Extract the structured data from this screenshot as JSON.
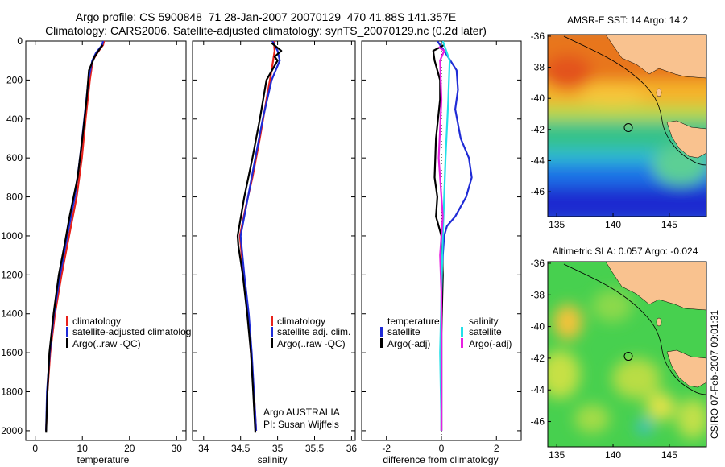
{
  "header": {
    "line1": "Argo profile: CS 5900848_71 28-Jan-2007 20070129_470 41.88S 141.357E",
    "line2": "Climatology: CARS2006. Satellite-adjusted climatology: synTS_20070129.nc (0.2d later)"
  },
  "colors": {
    "climatology": "#e8211b",
    "satellite": "#1f2bd6",
    "argo": "#000000",
    "argo_adj": "#e81ee0",
    "salinity_satellite": "#22e0e8",
    "land": "#f9c28f"
  },
  "chart_data": [
    {
      "type": "line",
      "id": "temperature_panel",
      "xlabel": "temperature",
      "xlim": [
        -2,
        32
      ],
      "ylim": [
        2050,
        0
      ],
      "xticks": [
        0,
        10,
        20,
        30
      ],
      "yticks": [
        0,
        200,
        400,
        600,
        800,
        1000,
        1200,
        1400,
        1600,
        1800,
        2000
      ],
      "legend": [
        "climatology",
        "satellite-adjusted climatolog",
        "Argo(..raw -QC)"
      ],
      "series": [
        {
          "name": "climatology",
          "color": "climatology",
          "points": [
            [
              14.6,
              0
            ],
            [
              14.4,
              20
            ],
            [
              13.2,
              60
            ],
            [
              12.2,
              100
            ],
            [
              11.6,
              200
            ],
            [
              10.7,
              400
            ],
            [
              9.9,
              600
            ],
            [
              8.8,
              800
            ],
            [
              7.2,
              1000
            ],
            [
              5.6,
              1200
            ],
            [
              4.2,
              1400
            ],
            [
              3.2,
              1600
            ],
            [
              2.6,
              1800
            ],
            [
              2.3,
              2000
            ]
          ]
        },
        {
          "name": "satellite-adjusted climatolog",
          "color": "satellite",
          "points": [
            [
              14.4,
              0
            ],
            [
              14.2,
              20
            ],
            [
              12.9,
              60
            ],
            [
              12.1,
              100
            ],
            [
              11.3,
              200
            ],
            [
              10.4,
              400
            ],
            [
              9.5,
              600
            ],
            [
              8.4,
              800
            ],
            [
              6.8,
              1000
            ],
            [
              5.3,
              1200
            ],
            [
              4.0,
              1400
            ],
            [
              3.1,
              1600
            ],
            [
              2.5,
              1800
            ],
            [
              2.3,
              2000
            ]
          ]
        },
        {
          "name": "Argo(..raw -QC)",
          "color": "argo",
          "points": [
            [
              14.3,
              20
            ],
            [
              13.7,
              40
            ],
            [
              12.6,
              80
            ],
            [
              11.4,
              150
            ],
            [
              10.9,
              300
            ],
            [
              10.0,
              500
            ],
            [
              9.0,
              700
            ],
            [
              7.3,
              900
            ],
            [
              6.2,
              1050
            ],
            [
              5.0,
              1200
            ],
            [
              3.9,
              1400
            ],
            [
              3.0,
              1600
            ],
            [
              2.6,
              1800
            ],
            [
              2.3,
              2010
            ]
          ]
        }
      ]
    },
    {
      "type": "line",
      "id": "salinity_panel",
      "xlabel": "salinity",
      "xlim": [
        33.85,
        36.05
      ],
      "ylim": [
        2050,
        0
      ],
      "xticks": [
        34,
        34.5,
        35,
        35.5,
        36
      ],
      "xticklabels": [
        "34",
        "34.5",
        "35",
        "35.5",
        "36"
      ],
      "legend": [
        "climatology",
        "satellite adj. clim.",
        "Argo(..raw -QC)"
      ],
      "annotation": [
        "Argo AUSTRALIA",
        "PI: Susan Wijffels"
      ],
      "series": [
        {
          "name": "climatology",
          "color": "climatology",
          "points": [
            [
              34.95,
              0
            ],
            [
              34.96,
              50
            ],
            [
              34.92,
              150
            ],
            [
              34.85,
              300
            ],
            [
              34.76,
              500
            ],
            [
              34.66,
              700
            ],
            [
              34.57,
              850
            ],
            [
              34.49,
              1000
            ],
            [
              34.54,
              1200
            ],
            [
              34.6,
              1400
            ],
            [
              34.64,
              1600
            ],
            [
              34.68,
              1800
            ],
            [
              34.71,
              2000
            ]
          ]
        },
        {
          "name": "satellite adj. clim.",
          "color": "satellite",
          "points": [
            [
              34.93,
              0
            ],
            [
              35.0,
              50
            ],
            [
              35.03,
              100
            ],
            [
              34.92,
              200
            ],
            [
              34.8,
              400
            ],
            [
              34.7,
              600
            ],
            [
              34.6,
              800
            ],
            [
              34.5,
              1000
            ],
            [
              34.55,
              1200
            ],
            [
              34.61,
              1400
            ],
            [
              34.65,
              1600
            ],
            [
              34.68,
              1800
            ],
            [
              34.71,
              2000
            ]
          ]
        },
        {
          "name": "Argo(..raw -QC)",
          "color": "argo",
          "points": [
            [
              34.92,
              10
            ],
            [
              35.05,
              50
            ],
            [
              34.96,
              80
            ],
            [
              35.0,
              100
            ],
            [
              34.85,
              200
            ],
            [
              34.76,
              400
            ],
            [
              34.66,
              600
            ],
            [
              34.55,
              800
            ],
            [
              34.46,
              1000
            ],
            [
              34.47,
              1050
            ],
            [
              34.53,
              1200
            ],
            [
              34.59,
              1400
            ],
            [
              34.64,
              1600
            ],
            [
              34.67,
              1800
            ],
            [
              34.7,
              2010
            ]
          ]
        }
      ]
    },
    {
      "type": "line",
      "id": "difference_panel",
      "xlabel": "difference from climatology",
      "xlim": [
        -2.9,
        2.9
      ],
      "ylim": [
        2050,
        0
      ],
      "xticks": [
        -2,
        0,
        2
      ],
      "legend_temperature_title": "temperature",
      "legend_salinity_title": "salinity",
      "legend_temperature": [
        "satellite",
        "Argo(-adj)"
      ],
      "legend_salinity": [
        "satellite",
        "Argo(-adj)"
      ],
      "series": [
        {
          "name": "temperature satellite",
          "color": "satellite",
          "points": [
            [
              -0.15,
              0
            ],
            [
              0.1,
              50
            ],
            [
              0.55,
              150
            ],
            [
              0.6,
              250
            ],
            [
              0.5,
              350
            ],
            [
              0.7,
              500
            ],
            [
              1.0,
              600
            ],
            [
              1.1,
              700
            ],
            [
              0.9,
              800
            ],
            [
              0.5,
              900
            ],
            [
              0.2,
              950
            ],
            [
              0.1,
              1000
            ],
            [
              0.05,
              1100
            ],
            [
              0,
              1300
            ],
            [
              0,
              2000
            ]
          ]
        },
        {
          "name": "temperature Argo(-adj)",
          "color": "argo",
          "points": [
            [
              0.1,
              20
            ],
            [
              -0.3,
              50
            ],
            [
              -0.25,
              100
            ],
            [
              -0.05,
              200
            ],
            [
              -0.05,
              300
            ],
            [
              -0.2,
              500
            ],
            [
              -0.25,
              700
            ],
            [
              -0.15,
              800
            ],
            [
              -0.2,
              900
            ],
            [
              0.0,
              1000
            ],
            [
              0.05,
              1200
            ],
            [
              0.0,
              1500
            ],
            [
              0.0,
              2000
            ]
          ]
        },
        {
          "name": "salinity satellite",
          "color": "salinity_satellite",
          "points": [
            [
              0.05,
              0
            ],
            [
              0.3,
              100
            ],
            [
              0.25,
              300
            ],
            [
              0.15,
              600
            ],
            [
              0.05,
              1000
            ],
            [
              0.0,
              1300
            ],
            [
              -0.05,
              1600
            ],
            [
              0.0,
              2000
            ]
          ]
        },
        {
          "name": "salinity Argo(-adj)",
          "color": "argo_adj",
          "points": [
            [
              -0.1,
              30
            ],
            [
              0.1,
              50
            ],
            [
              -0.05,
              100
            ],
            [
              0.0,
              300
            ],
            [
              -0.1,
              600
            ],
            [
              0.05,
              900
            ],
            [
              -0.05,
              1100
            ],
            [
              0.0,
              1300
            ],
            [
              0.0,
              2000
            ]
          ]
        }
      ]
    },
    {
      "type": "heatmap",
      "id": "sst_map",
      "title": "AMSR-E SST: 14 Argo: 14.2",
      "xticks": [
        135,
        140,
        145
      ],
      "yticks": [
        -36,
        -38,
        -40,
        -42,
        -44,
        -46
      ],
      "profile_location": [
        141.357,
        -41.88
      ]
    },
    {
      "type": "heatmap",
      "id": "sla_map",
      "title": "Altimetric SLA: 0.057 Argo: -0.024",
      "xticks": [
        135,
        140,
        145
      ],
      "yticks": [
        -36,
        -38,
        -40,
        -42,
        -44,
        -46
      ],
      "profile_location": [
        141.357,
        -41.88
      ]
    }
  ],
  "footer": {
    "stamp": "CSIRO 07-Feb-2007 09:01:31"
  }
}
